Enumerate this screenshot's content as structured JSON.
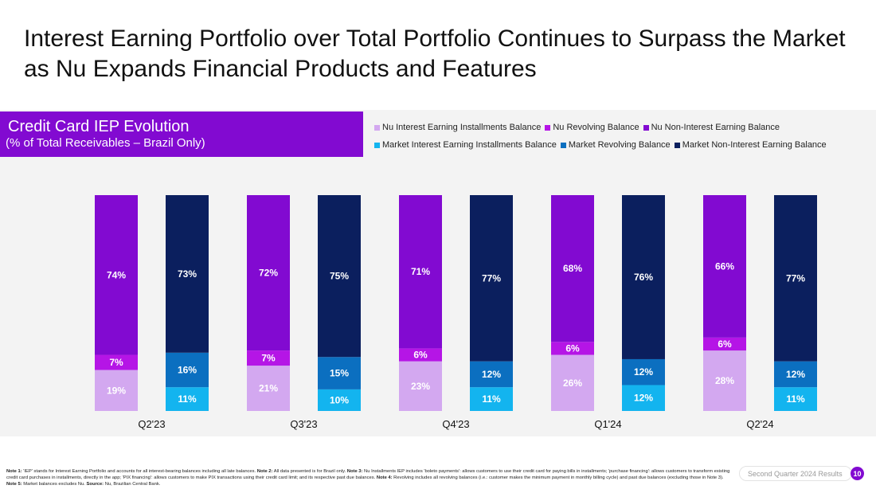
{
  "title": "Interest Earning Portfolio over Total Portfolio Continues to Surpass the Market as Nu Expands Financial Products and Features",
  "chart_data": {
    "type": "bar",
    "stacked": true,
    "title": "Credit Card IEP Evolution",
    "subtitle": "(% of Total Receivables – Brazil Only)",
    "ylim": [
      0,
      100
    ],
    "grid": false,
    "legend_position": "top-right",
    "categories": [
      "Q2'23",
      "Q3'23",
      "Q4'23",
      "Q1'24",
      "Q2'24"
    ],
    "groups": [
      {
        "name": "Nu",
        "series": [
          {
            "name": "Nu Interest Earning Installments Balance",
            "color": "#d3a8f0",
            "values": [
              19,
              21,
              23,
              26,
              28
            ]
          },
          {
            "name": "Nu Revolving Balance",
            "color": "#b515e6",
            "values": [
              7,
              7,
              6,
              6,
              6
            ]
          },
          {
            "name": "Nu Non-Interest Earning Balance",
            "color": "#820ad1",
            "values": [
              74,
              72,
              71,
              68,
              66
            ]
          }
        ]
      },
      {
        "name": "Market",
        "series": [
          {
            "name": "Market Interest Earning Installments Balance",
            "color": "#13b4ef",
            "values": [
              11,
              10,
              11,
              12,
              11
            ]
          },
          {
            "name": "Market Revolving Balance",
            "color": "#0b6fc0",
            "values": [
              16,
              15,
              12,
              12,
              12
            ]
          },
          {
            "name": "Market Non-Interest Earning Balance",
            "color": "#0b1f5e",
            "values": [
              73,
              75,
              77,
              76,
              77
            ]
          }
        ]
      }
    ],
    "legend_rows": [
      [
        "Nu Interest Earning Installments Balance",
        "Nu Revolving Balance",
        "Nu Non-Interest Earning Balance"
      ],
      [
        "Market Interest Earning Installments Balance",
        "Market Revolving Balance",
        "Market Non-Interest Earning Balance"
      ]
    ]
  },
  "notes": {
    "n1_label": "Note 1:",
    "n1_text": " 'IEP' stands for Interest Earning Portfolio and accounts for all interest-bearing balances including all late balances. ",
    "n2_label": "Note 2:",
    "n2_text": " All data presented is for Brazil only. ",
    "n3_label": "Note 3:",
    "n3_text": " Nu Installments IEP includes 'boleto payments': allows customers to use their credit card for paying bills in installments; 'purchase financing': allows customers to transform existing credit card purchases in installments, directly in the app; 'PIX financing': allows customers to make PIX transactions using their credit card limit; and its respective past due balances. ",
    "n4_label": "Note 4:",
    "n4_text": " Revolving includes all revolving balances (i.e.: customer makes the minimum payment in monthly billing cycle) and past due balances (excluding those in Note 3). ",
    "n5_label": "Note 5:",
    "n5_text": " Market balances excludes Nu. ",
    "source_label": "Source:",
    "source_text": " Nu, Brazilian Central Bank."
  },
  "footer": {
    "report_label": "Second Quarter 2024 Results",
    "page_number": "10"
  }
}
